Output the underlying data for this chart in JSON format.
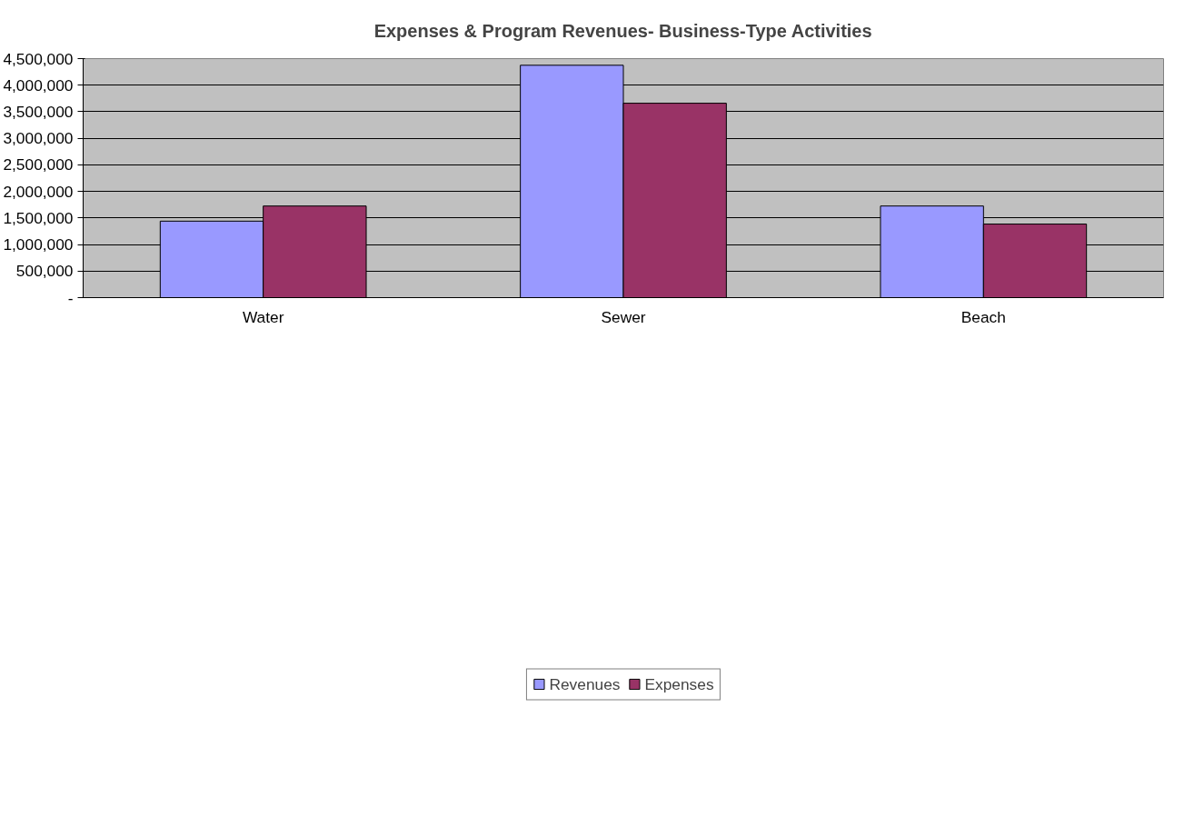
{
  "chart_data": {
    "type": "bar",
    "title": "Expenses & Program Revenues- Business-Type Activities",
    "categories": [
      "Water",
      "Sewer",
      "Beach"
    ],
    "series": [
      {
        "name": "Revenues",
        "color": "#9999ff",
        "values": [
          1440000,
          4375000,
          1725000
        ]
      },
      {
        "name": "Expenses",
        "color": "#993366",
        "values": [
          1725000,
          3660000,
          1385000
        ]
      }
    ],
    "ylim": [
      0,
      4500000
    ],
    "yticks": [
      {
        "value": 0,
        "label": "-"
      },
      {
        "value": 500000,
        "label": "500,000"
      },
      {
        "value": 1000000,
        "label": "1,000,000"
      },
      {
        "value": 1500000,
        "label": "1,500,000"
      },
      {
        "value": 2000000,
        "label": "2,000,000"
      },
      {
        "value": 2500000,
        "label": "2,500,000"
      },
      {
        "value": 3000000,
        "label": "3,000,000"
      },
      {
        "value": 3500000,
        "label": "3,500,000"
      },
      {
        "value": 4000000,
        "label": "4,000,000"
      },
      {
        "value": 4500000,
        "label": "4,500,000"
      }
    ],
    "grid": "y",
    "legend": "bottom"
  }
}
